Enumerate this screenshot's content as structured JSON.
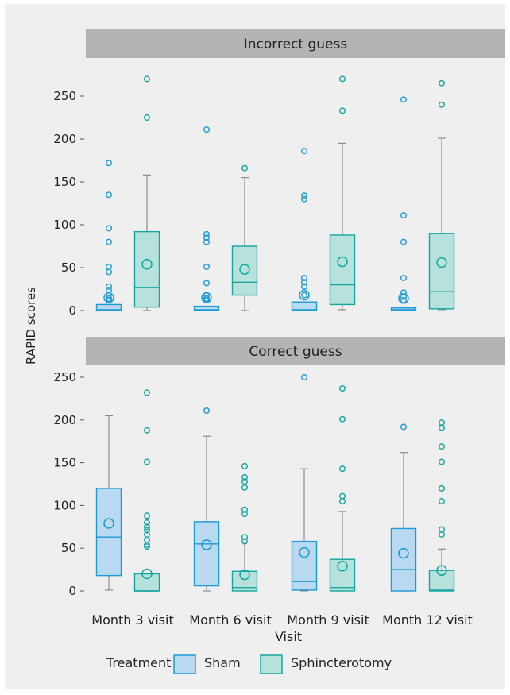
{
  "chart_data": {
    "type": "boxplot",
    "ylabel": "RAPID scores",
    "xlabel": "Visit",
    "categories": [
      "Month 3 visit",
      "Month 6 visit",
      "Month 9 visit",
      "Month 12 visit"
    ],
    "ylim": [
      0,
      250
    ],
    "yticks": [
      0,
      50,
      100,
      150,
      200,
      250
    ],
    "legend": {
      "title": "Treatment",
      "position": "bottom",
      "entries": [
        {
          "name": "Sham",
          "fill": "#b9d9f0",
          "stroke": "#1b9ad6"
        },
        {
          "name": "Sphincterotomy",
          "fill": "#b7e2dc",
          "stroke": "#14a6a0"
        }
      ]
    },
    "colors": {
      "panel_header": "#b4b4b4",
      "background": "#efefef",
      "whisker": "#8c8c8c"
    },
    "panels": [
      {
        "title": "Incorrect guess",
        "series": [
          {
            "name": "Sham",
            "boxes": [
              {
                "min": 0,
                "q1": 0,
                "median": 1,
                "q3": 7,
                "max": 7,
                "mean": 15,
                "outliers": [
                  172,
                  135,
                  96,
                  80,
                  51,
                  45,
                  28,
                  24,
                  18,
                  14,
                  12
                ]
              },
              {
                "min": 0,
                "q1": 0,
                "median": 1,
                "q3": 5,
                "max": 5,
                "mean": 15,
                "outliers": [
                  211,
                  89,
                  85,
                  80,
                  51,
                  32,
                  18,
                  14,
                  12
                ]
              },
              {
                "min": 0,
                "q1": 0,
                "median": 1,
                "q3": 10,
                "max": 10,
                "mean": 18,
                "outliers": [
                  186,
                  134,
                  130,
                  38,
                  33,
                  28,
                  18
                ]
              },
              {
                "min": 0,
                "q1": 0,
                "median": 1,
                "q3": 3,
                "max": 3,
                "mean": 14,
                "outliers": [
                  246,
                  111,
                  80,
                  38,
                  21,
                  16,
                  12
                ]
              }
            ]
          },
          {
            "name": "Sphincterotomy",
            "boxes": [
              {
                "min": 0,
                "q1": 4,
                "median": 27,
                "q3": 92,
                "max": 158,
                "mean": 54,
                "outliers": [
                  270,
                  225
                ]
              },
              {
                "min": 0,
                "q1": 18,
                "median": 33,
                "q3": 75,
                "max": 155,
                "mean": 48,
                "outliers": [
                  166
                ]
              },
              {
                "min": 1,
                "q1": 7,
                "median": 30,
                "q3": 88,
                "max": 195,
                "mean": 57,
                "outliers": [
                  270,
                  233
                ]
              },
              {
                "min": 1,
                "q1": 2,
                "median": 22,
                "q3": 90,
                "max": 201,
                "mean": 56,
                "outliers": [
                  265,
                  240
                ]
              }
            ]
          }
        ]
      },
      {
        "title": "Correct guess",
        "series": [
          {
            "name": "Sham",
            "boxes": [
              {
                "min": 1,
                "q1": 18,
                "median": 63,
                "q3": 120,
                "max": 205,
                "mean": 79,
                "outliers": []
              },
              {
                "min": 0,
                "q1": 6,
                "median": 55,
                "q3": 81,
                "max": 181,
                "mean": 54,
                "outliers": [
                  211
                ]
              },
              {
                "min": 0,
                "q1": 1,
                "median": 11,
                "q3": 58,
                "max": 143,
                "mean": 45,
                "outliers": [
                  250
                ]
              },
              {
                "min": 0,
                "q1": 0,
                "median": 25,
                "q3": 73,
                "max": 162,
                "mean": 44,
                "outliers": [
                  192
                ]
              }
            ]
          },
          {
            "name": "Sphincterotomy",
            "boxes": [
              {
                "min": 0,
                "q1": 0,
                "median": 0,
                "q3": 20,
                "max": 20,
                "mean": 20,
                "outliers": [
                  232,
                  188,
                  151,
                  88,
                  80,
                  75,
                  71,
                  66,
                  60,
                  54,
                  52
                ]
              },
              {
                "min": 0,
                "q1": 0,
                "median": 4,
                "q3": 23,
                "max": 57,
                "mean": 19,
                "outliers": [
                  146,
                  133,
                  128,
                  121,
                  95,
                  90,
                  63,
                  58
                ]
              },
              {
                "min": 0,
                "q1": 0,
                "median": 4,
                "q3": 37,
                "max": 93,
                "mean": 29,
                "outliers": [
                  237,
                  201,
                  143,
                  111,
                  105
                ]
              },
              {
                "min": 0,
                "q1": 0,
                "median": 1,
                "q3": 24,
                "max": 49,
                "mean": 24,
                "outliers": [
                  197,
                  191,
                  169,
                  151,
                  120,
                  105,
                  72,
                  66
                ]
              }
            ]
          }
        ]
      }
    ]
  }
}
